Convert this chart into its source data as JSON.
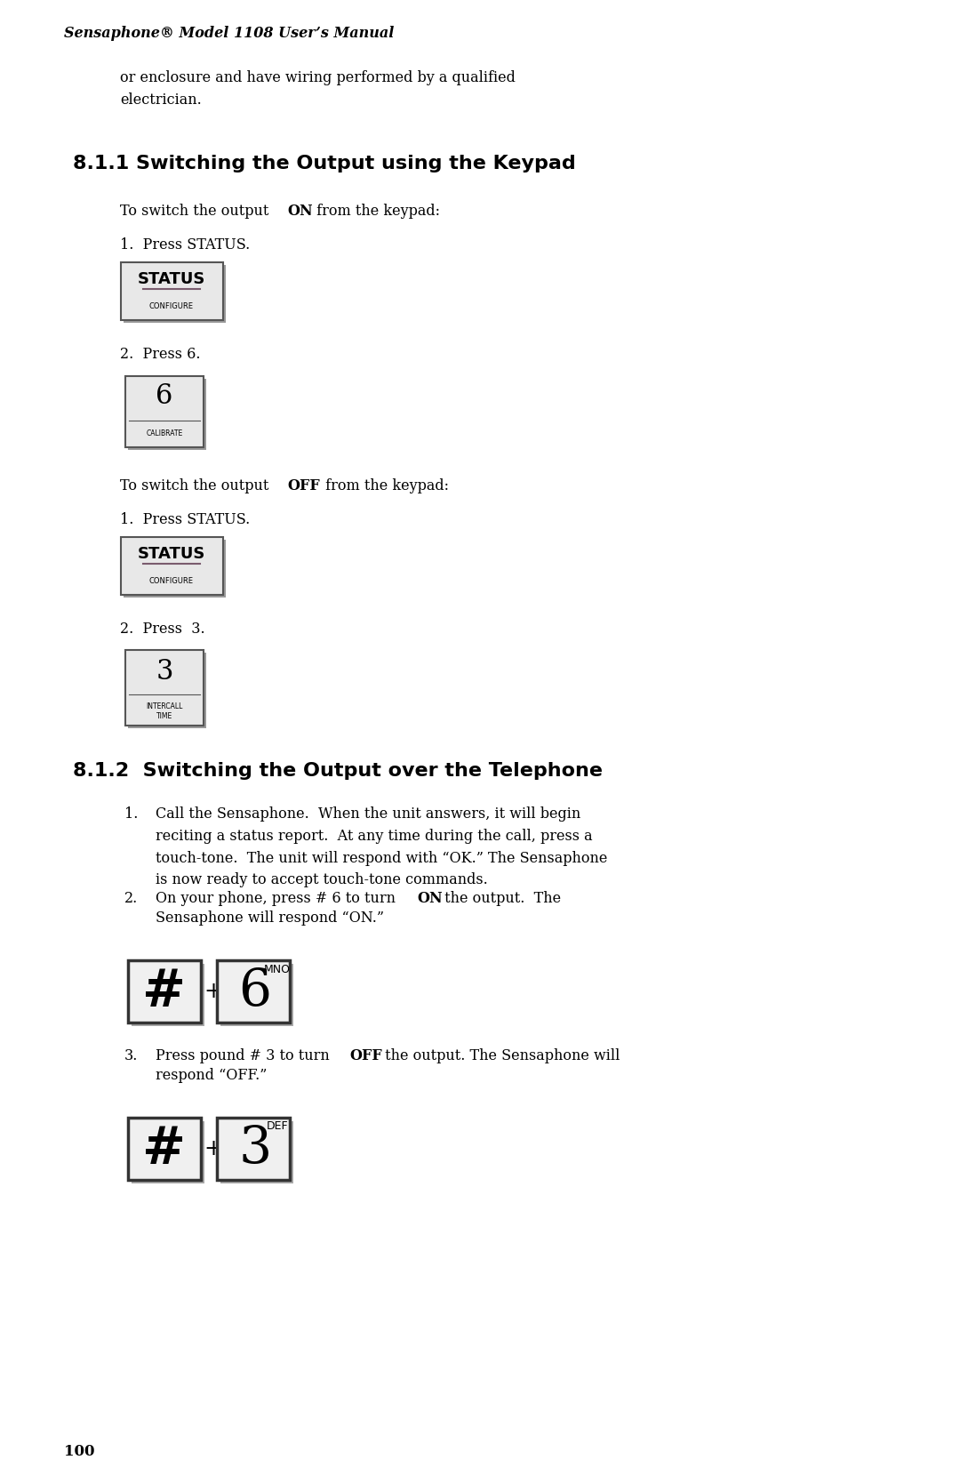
{
  "bg_color": "#ffffff",
  "header_text": "Sensaphone® Model 1108 User’s Manual",
  "intro_text": "or enclosure and have wiring performed by a qualified\nelectrician.",
  "section1_title": "8.1.1 Switching the Output using the Keypad",
  "on_intro": "To switch the output ON from the keypad:",
  "on_steps": [
    "Press STATUS.",
    "Press 6."
  ],
  "off_intro": "To switch the output OFF from the keypad:",
  "off_steps": [
    "Press STATUS.",
    "Press  3."
  ],
  "section2_title": "8.1.2  Switching the Output over the Telephone",
  "tel_steps": [
    "Call the Sensaphone.  When the unit answers, it will begin\nreciting a status report.  At any time during the call, press a\ntouch-tone.  The unit will respond with “OK.” The Sensaphone\nis now ready to accept touch-tone commands.",
    "On your phone, press # 6 to turn ON the output.  The\nSensaphone will respond “ON.”",
    "Press pound # 3 to turn OFF the output. The Sensaphone will\nrespond “OFF.”"
  ],
  "page_number": "100",
  "button_bg": "#e8e8e8",
  "button_border": "#555555",
  "button_shadow": "#999999"
}
